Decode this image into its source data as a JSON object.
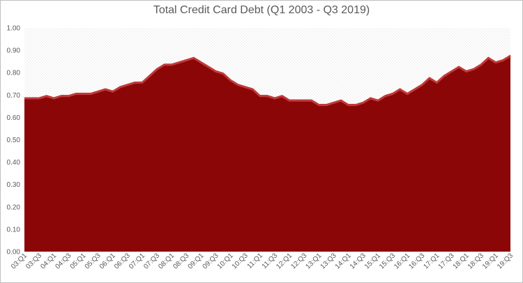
{
  "chart_data": {
    "type": "area",
    "title": "Total Credit Card Debt (Q1 2003 - Q3 2019)",
    "xlabel": "",
    "ylabel": "",
    "ylim": [
      0,
      1.0
    ],
    "yticks": [
      "0.00",
      "0.10",
      "0.20",
      "0.30",
      "0.40",
      "0.50",
      "0.60",
      "0.70",
      "0.80",
      "0.90",
      "1.00"
    ],
    "grid": false,
    "legend": "none",
    "colors": {
      "area": "#8b0707",
      "highlight": "#c23a3a",
      "plot_pattern": "#d9d9d9"
    },
    "x_labels": [
      "03:Q1",
      "03:Q3",
      "04:Q1",
      "04:Q3",
      "05:Q1",
      "05:Q3",
      "06:Q1",
      "06:Q3",
      "07:Q1",
      "07:Q3",
      "08:Q1",
      "08:Q3",
      "09:Q1",
      "09:Q3",
      "10:Q1",
      "10:Q3",
      "11:Q1",
      "11:Q3",
      "12:Q1",
      "12:Q3",
      "13:Q1",
      "13:Q3",
      "14:Q1",
      "14:Q3",
      "15:Q1",
      "15:Q3",
      "16:Q1",
      "16:Q3",
      "17:Q1",
      "17:Q3",
      "18:Q1",
      "18:Q3",
      "19:Q1",
      "19:Q3"
    ],
    "x": [
      "03:Q1",
      "03:Q2",
      "03:Q3",
      "03:Q4",
      "04:Q1",
      "04:Q2",
      "04:Q3",
      "04:Q4",
      "05:Q1",
      "05:Q2",
      "05:Q3",
      "05:Q4",
      "06:Q1",
      "06:Q2",
      "06:Q3",
      "06:Q4",
      "07:Q1",
      "07:Q2",
      "07:Q3",
      "07:Q4",
      "08:Q1",
      "08:Q2",
      "08:Q3",
      "08:Q4",
      "09:Q1",
      "09:Q2",
      "09:Q3",
      "09:Q4",
      "10:Q1",
      "10:Q2",
      "10:Q3",
      "10:Q4",
      "11:Q1",
      "11:Q2",
      "11:Q3",
      "11:Q4",
      "12:Q1",
      "12:Q2",
      "12:Q3",
      "12:Q4",
      "13:Q1",
      "13:Q2",
      "13:Q3",
      "13:Q4",
      "14:Q1",
      "14:Q2",
      "14:Q3",
      "14:Q4",
      "15:Q1",
      "15:Q2",
      "15:Q3",
      "15:Q4",
      "16:Q1",
      "16:Q2",
      "16:Q3",
      "16:Q4",
      "17:Q1",
      "17:Q2",
      "17:Q3",
      "17:Q4",
      "18:Q1",
      "18:Q2",
      "18:Q3",
      "18:Q4",
      "19:Q1",
      "19:Q2",
      "19:Q3"
    ],
    "values": [
      0.69,
      0.69,
      0.69,
      0.7,
      0.69,
      0.7,
      0.7,
      0.71,
      0.71,
      0.71,
      0.72,
      0.73,
      0.72,
      0.74,
      0.75,
      0.76,
      0.76,
      0.79,
      0.82,
      0.84,
      0.84,
      0.85,
      0.86,
      0.87,
      0.85,
      0.83,
      0.81,
      0.8,
      0.77,
      0.75,
      0.74,
      0.73,
      0.7,
      0.7,
      0.69,
      0.7,
      0.68,
      0.68,
      0.68,
      0.68,
      0.66,
      0.66,
      0.67,
      0.68,
      0.66,
      0.66,
      0.67,
      0.69,
      0.68,
      0.7,
      0.71,
      0.73,
      0.71,
      0.73,
      0.75,
      0.78,
      0.76,
      0.79,
      0.81,
      0.83,
      0.81,
      0.82,
      0.84,
      0.87,
      0.85,
      0.86,
      0.88
    ]
  }
}
